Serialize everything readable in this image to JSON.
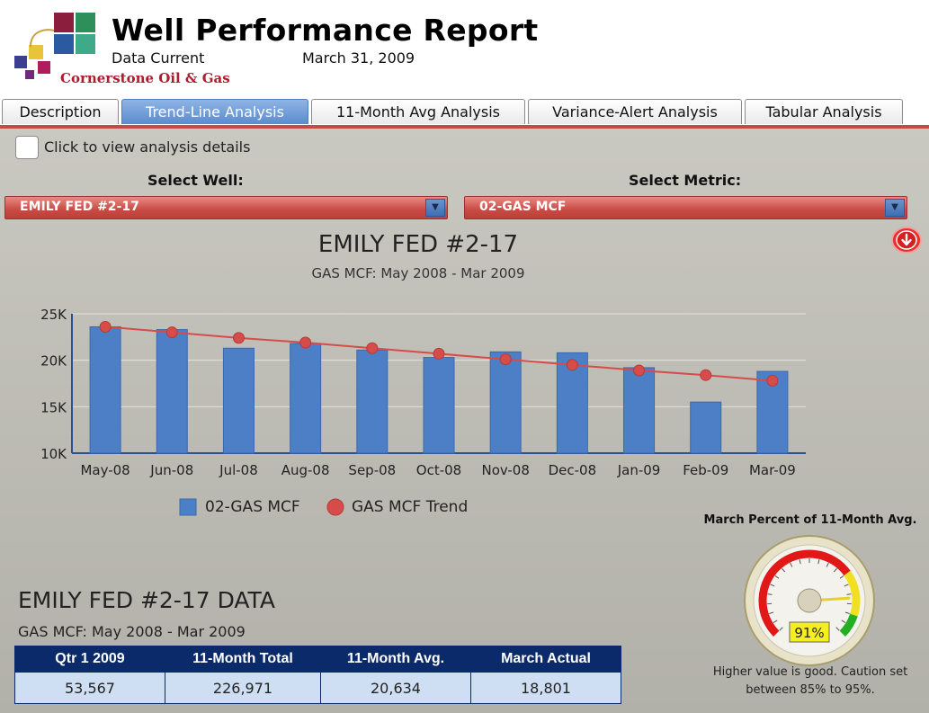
{
  "header": {
    "title": "Well Performance Report",
    "data_current_label": "Data Current",
    "data_current_value": "March 31, 2009",
    "company": "Cornerstone Oil & Gas"
  },
  "tabs": [
    {
      "label": "Description",
      "active": false
    },
    {
      "label": "Trend-Line Analysis",
      "active": true
    },
    {
      "label": "11-Month Avg Analysis",
      "active": false
    },
    {
      "label": "Variance-Alert Analysis",
      "active": false
    },
    {
      "label": "Tabular Analysis",
      "active": false
    }
  ],
  "controls": {
    "checkbox_label": "Click to view analysis details",
    "well_label": "Select Well:",
    "well_value": "EMILY FED #2-17",
    "metric_label": "Select Metric:",
    "metric_value": "02-GAS MCF"
  },
  "chart_data": {
    "type": "bar",
    "title": "EMILY FED #2-17",
    "subtitle": "GAS MCF:  May 2008 - Mar 2009",
    "categories": [
      "May-08",
      "Jun-08",
      "Jul-08",
      "Aug-08",
      "Sep-08",
      "Oct-08",
      "Nov-08",
      "Dec-08",
      "Jan-09",
      "Feb-09",
      "Mar-09"
    ],
    "series": [
      {
        "name": "02-GAS MCF",
        "kind": "bar",
        "color": "#4d7fc7",
        "values": [
          23600,
          23300,
          21300,
          21800,
          21100,
          20300,
          20900,
          20800,
          19200,
          15500,
          18801
        ]
      },
      {
        "name": "GAS MCF Trend",
        "kind": "line",
        "color": "#d64c4a",
        "values": [
          23600,
          23000,
          22400,
          21900,
          21300,
          20700,
          20100,
          19500,
          18900,
          18400,
          17800
        ]
      }
    ],
    "ylim": [
      10000,
      25000
    ],
    "yticks": [
      10000,
      15000,
      20000,
      25000
    ],
    "ytick_labels": [
      "10K",
      "15K",
      "20K",
      "25K"
    ],
    "grid": true,
    "legend_position": "bottom"
  },
  "gauge": {
    "title": "March Percent of 11-Month Avg.",
    "value_percent": 91,
    "value_label": "91%",
    "note": "Higher value is good.  Caution set between 85% to 95%.",
    "caution_low_percent": 85,
    "caution_high_percent": 95,
    "colors": {
      "low": "#e01818",
      "caution": "#f0e020",
      "good": "#22b022"
    }
  },
  "data_section": {
    "title": "EMILY FED #2-17 DATA",
    "subtitle": "GAS MCF:  May 2008 - Mar 2009",
    "headers": [
      "Qtr 1 2009",
      "11-Month Total",
      "11-Month Avg.",
      "March Actual"
    ],
    "values": [
      "53,567",
      "226,971",
      "20,634",
      "18,801"
    ]
  },
  "icons": {
    "scroll_down": "down-arrow-circle-icon"
  }
}
